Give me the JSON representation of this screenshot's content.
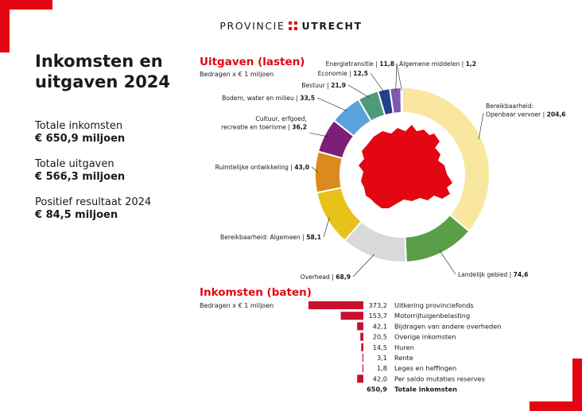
{
  "logo": {
    "part1": "PROVINCIE",
    "part2": "UTRECHT"
  },
  "title": "Inkomsten en uitgaven 2024",
  "stats": [
    {
      "label": "Totale inkomsten",
      "value": "€ 650,9 miljoen"
    },
    {
      "label": "Totale uitgaven",
      "value": "€ 566,3 miljoen"
    },
    {
      "label": "Positief resultaat 2024",
      "value": "€ 84,5 miljoen"
    }
  ],
  "expenses": {
    "title": "Uitgaven (lasten)",
    "subtitle": "Bedragen x € 1 miljoen"
  },
  "income": {
    "title": "Inkomsten (baten)",
    "subtitle": "Bedragen x € 1 miljoen"
  },
  "colors": {
    "accent": "#e30613",
    "income_bar": "#c8102e"
  },
  "chart_data": [
    {
      "type": "pie",
      "title": "Uitgaven (lasten)",
      "subtitle": "Bedragen x € 1 miljoen",
      "slices": [
        {
          "label": "Bereikbaarheid: Openbaar vervoer",
          "value": 204.6,
          "display": "204,6",
          "color": "#f9e79f"
        },
        {
          "label": "Landelijk gebied",
          "value": 74.6,
          "display": "74,6",
          "color": "#5a9e47"
        },
        {
          "label": "Overhead",
          "value": 68.9,
          "display": "68,9",
          "color": "#d9d9d9"
        },
        {
          "label": "Bereikbaarheid: Algemeen",
          "value": 58.1,
          "display": "58,1",
          "color": "#e8c21a"
        },
        {
          "label": "Ruimtelijke ontwikkeling",
          "value": 43.0,
          "display": "43,0",
          "color": "#db8a1e"
        },
        {
          "label": "Cultuur, erfgoed, recreatie en toerisme",
          "value": 36.2,
          "display": "36,2",
          "color": "#7d1f78"
        },
        {
          "label": "Bodem, water en milieu",
          "value": 33.5,
          "display": "33,5",
          "color": "#5aa2dc"
        },
        {
          "label": "Bestuur",
          "value": 21.9,
          "display": "21,9",
          "color": "#4e9a7a"
        },
        {
          "label": "Economie",
          "value": 12.5,
          "display": "12,5",
          "color": "#233f8f"
        },
        {
          "label": "Energietransitie",
          "value": 11.8,
          "display": "11,8",
          "color": "#7a5bb0"
        },
        {
          "label": "Algemene middelen",
          "value": 1.2,
          "display": "1,2",
          "color": "#d64a6b"
        }
      ]
    },
    {
      "type": "bar",
      "title": "Inkomsten (baten)",
      "subtitle": "Bedragen x € 1 miljoen",
      "rows": [
        {
          "label": "Uitkering provinciefonds",
          "value": 373.2,
          "display": "373,2"
        },
        {
          "label": "Motorrijtuigenbelasting",
          "value": 153.7,
          "display": "153,7"
        },
        {
          "label": "Bijdragen van andere overheden",
          "value": 42.1,
          "display": "42,1"
        },
        {
          "label": "Overige inkomsten",
          "value": 20.5,
          "display": "20,5"
        },
        {
          "label": "Huren",
          "value": 14.5,
          "display": "14,5"
        },
        {
          "label": "Rente",
          "value": 3.1,
          "display": "3,1"
        },
        {
          "label": "Leges en heffingen",
          "value": 1.8,
          "display": "1,8"
        },
        {
          "label": "Per saldo mutaties reserves",
          "value": 42.0,
          "display": "42,0"
        }
      ],
      "total": {
        "label": "Totale inkomsten",
        "value": 650.9,
        "display": "650,9"
      }
    }
  ]
}
